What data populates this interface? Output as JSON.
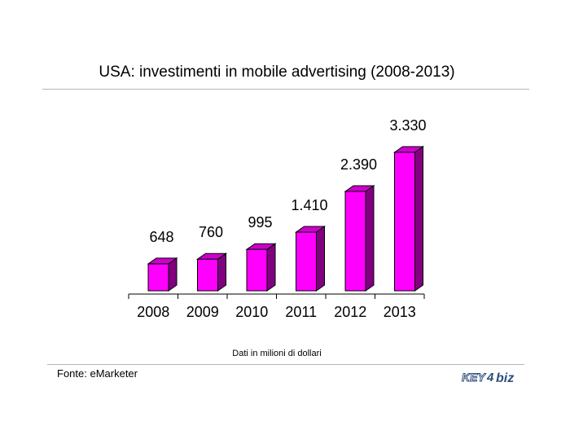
{
  "chart_data": {
    "type": "bar",
    "title": "USA: investimenti in mobile advertising (2008-2013)",
    "categories": [
      "2008",
      "2009",
      "2010",
      "2011",
      "2012",
      "2013"
    ],
    "values": [
      648,
      760,
      995,
      1410,
      2390,
      3330
    ],
    "value_labels": [
      "648",
      "760",
      "995",
      "1.410",
      "2.390",
      "3.330"
    ],
    "ylim": [
      0,
      3500
    ],
    "grid": false,
    "style": "3d",
    "colors": {
      "bar_front": "#ff00ff",
      "bar_side": "#800080",
      "bar_top": "#cc00cc",
      "outline": "#000000"
    }
  },
  "note": "Dati in milioni di dollari",
  "source": "Fonte: eMarketer",
  "logo": {
    "text_key": "KEY",
    "text_4": "4",
    "text_biz": "biz",
    "color": "#2f4f7f"
  }
}
